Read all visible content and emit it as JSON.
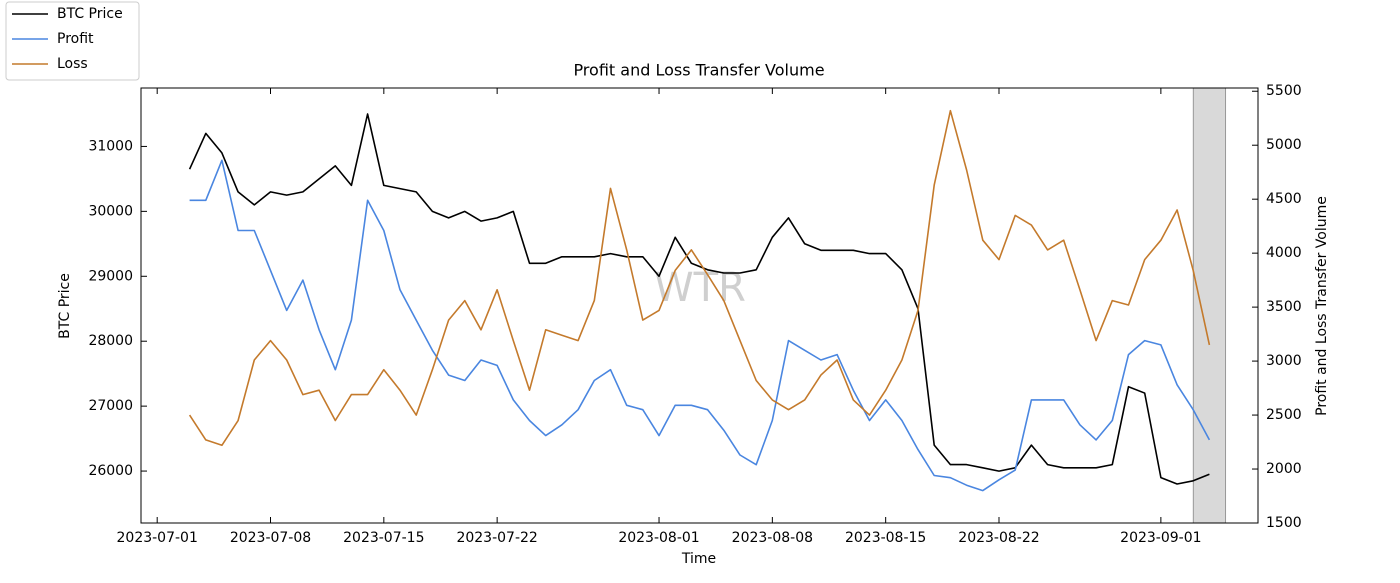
{
  "chart_data": {
    "type": "line",
    "title": "Profit and Loss Transfer Volume",
    "xlabel": "Time",
    "ylabel": "BTC Price",
    "y2label": "Profit and Loss Transfer Volume",
    "watermark": "WTR",
    "x": [
      "2023-07-03",
      "2023-07-04",
      "2023-07-05",
      "2023-07-06",
      "2023-07-07",
      "2023-07-08",
      "2023-07-09",
      "2023-07-10",
      "2023-07-11",
      "2023-07-12",
      "2023-07-13",
      "2023-07-14",
      "2023-07-15",
      "2023-07-16",
      "2023-07-17",
      "2023-07-18",
      "2023-07-19",
      "2023-07-20",
      "2023-07-21",
      "2023-07-22",
      "2023-07-23",
      "2023-07-24",
      "2023-07-25",
      "2023-07-26",
      "2023-07-27",
      "2023-07-28",
      "2023-07-29",
      "2023-07-30",
      "2023-07-31",
      "2023-08-01",
      "2023-08-02",
      "2023-08-03",
      "2023-08-04",
      "2023-08-05",
      "2023-08-06",
      "2023-08-07",
      "2023-08-08",
      "2023-08-09",
      "2023-08-10",
      "2023-08-11",
      "2023-08-12",
      "2023-08-13",
      "2023-08-14",
      "2023-08-15",
      "2023-08-16",
      "2023-08-17",
      "2023-08-18",
      "2023-08-19",
      "2023-08-20",
      "2023-08-21",
      "2023-08-22",
      "2023-08-23",
      "2023-08-24",
      "2023-08-25",
      "2023-08-26",
      "2023-08-27",
      "2023-08-28",
      "2023-08-29",
      "2023-08-30",
      "2023-08-31",
      "2023-09-01",
      "2023-09-02",
      "2023-09-03",
      "2023-09-04"
    ],
    "series": [
      {
        "name": "BTC Price",
        "color": "#000000",
        "axis": "y",
        "values": [
          30650,
          31200,
          30900,
          30300,
          30100,
          30300,
          30250,
          30300,
          30500,
          30700,
          30400,
          31500,
          30400,
          30350,
          30300,
          30000,
          29900,
          30000,
          29850,
          29900,
          30000,
          29200,
          29200,
          29300,
          29300,
          29300,
          29350,
          29300,
          29300,
          29000,
          29600,
          29200,
          29100,
          29050,
          29050,
          29100,
          29600,
          29900,
          29500,
          29400,
          29400,
          29400,
          29350,
          29350,
          29100,
          28500,
          26400,
          26100,
          26100,
          26050,
          26000,
          26050,
          26400,
          26100,
          26050,
          26050,
          26050,
          26100,
          27300,
          27200,
          25900,
          25800,
          25850,
          25950
        ]
      },
      {
        "name": "Profit",
        "color": "#4a86e0",
        "axis": "y2",
        "values": [
          4490,
          4490,
          4860,
          4210,
          4210,
          3840,
          3470,
          3750,
          3290,
          2920,
          3380,
          4490,
          4210,
          3660,
          3380,
          3100,
          2870,
          2820,
          3010,
          2960,
          2640,
          2450,
          2310,
          2410,
          2550,
          2820,
          2920,
          2590,
          2550,
          2310,
          2590,
          2590,
          2550,
          2360,
          2130,
          2040,
          2450,
          3190,
          3100,
          3010,
          3060,
          2730,
          2450,
          2640,
          2450,
          2180,
          1940,
          1920,
          1850,
          1800,
          1900,
          1990,
          2640,
          2640,
          2640,
          2410,
          2270,
          2450,
          3060,
          3190,
          3150,
          2780,
          2550,
          2270
        ]
      },
      {
        "name": "Loss",
        "color": "#c47a2c",
        "axis": "y2",
        "values": [
          2500,
          2270,
          2220,
          2450,
          3010,
          3190,
          3010,
          2690,
          2730,
          2450,
          2690,
          2690,
          2920,
          2730,
          2500,
          2920,
          3380,
          3560,
          3290,
          3660,
          3190,
          2730,
          3290,
          3240,
          3190,
          3560,
          4600,
          4030,
          3380,
          3470,
          3840,
          4030,
          3800,
          3560,
          3190,
          2820,
          2640,
          2550,
          2640,
          2870,
          3010,
          2640,
          2500,
          2730,
          3010,
          3470,
          4630,
          5320,
          4770,
          4120,
          3940,
          4350,
          4260,
          4030,
          4120,
          3660,
          3190,
          3560,
          3520,
          3940,
          4120,
          4400,
          3840,
          3150
        ]
      }
    ],
    "xlim": [
      "2023-06-30",
      "2023-09-07"
    ],
    "xticks": [
      "2023-07-01",
      "2023-07-08",
      "2023-07-15",
      "2023-07-22",
      "2023-08-01",
      "2023-08-08",
      "2023-08-15",
      "2023-08-22",
      "2023-09-01"
    ],
    "ylim": [
      25200,
      31900
    ],
    "yticks": [
      26000,
      27000,
      28000,
      29000,
      30000,
      31000
    ],
    "y2lim": [
      1500,
      5530
    ],
    "y2ticks": [
      1500,
      2000,
      2500,
      3000,
      3500,
      4000,
      4500,
      5000,
      5500
    ],
    "highlight": {
      "start": "2023-09-03",
      "end": "2023-09-05",
      "color": "#d9d9d9"
    },
    "legend": "outside-top-left"
  }
}
